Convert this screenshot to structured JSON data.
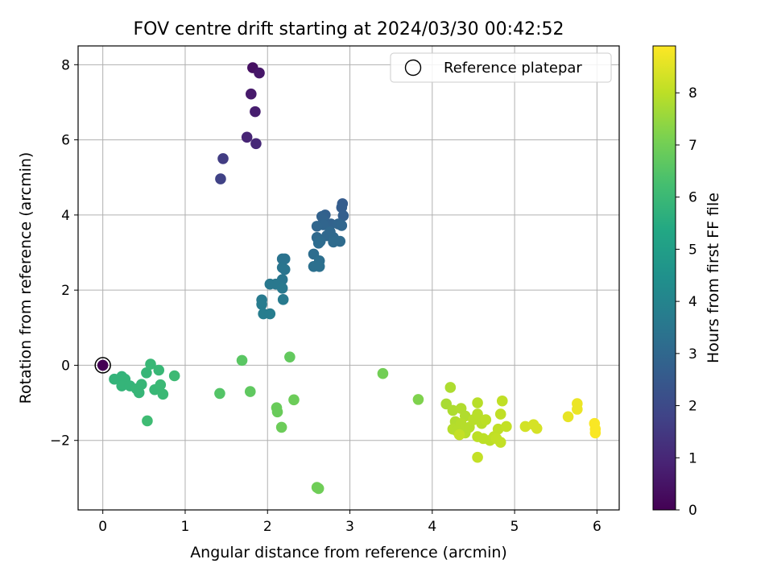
{
  "chart_data": {
    "type": "scatter",
    "title": "FOV centre drift starting at 2024/03/30 00:42:52",
    "xlabel": "Angular distance from reference (arcmin)",
    "ylabel": "Rotation from reference (arcmin)",
    "xlim": [
      -0.3,
      6.27
    ],
    "ylim": [
      -3.85,
      8.5
    ],
    "xticks": [
      0,
      1,
      2,
      3,
      4,
      5,
      6
    ],
    "yticks": [
      -2,
      0,
      2,
      4,
      6,
      8
    ],
    "ytick_labels": [
      "−2",
      "0",
      "2",
      "4",
      "6",
      "8"
    ],
    "grid": true,
    "legend": {
      "position": "top-right",
      "entries": [
        "Reference platepar"
      ]
    },
    "colorbar": {
      "label": "Hours from first FF file",
      "range": [
        0,
        8.9
      ],
      "ticks": [
        0,
        1,
        2,
        3,
        4,
        5,
        6,
        7,
        8
      ],
      "colormap": "viridis"
    },
    "reference_point": {
      "x": 0,
      "y": 0,
      "hour": 0
    },
    "points": [
      [
        1.82,
        7.92,
        0.4
      ],
      [
        1.9,
        7.78,
        0.55
      ],
      [
        1.8,
        7.22,
        0.65
      ],
      [
        1.85,
        6.75,
        0.75
      ],
      [
        1.75,
        6.07,
        0.95
      ],
      [
        1.86,
        5.9,
        1.05
      ],
      [
        1.46,
        5.5,
        1.6
      ],
      [
        1.43,
        4.96,
        1.75
      ],
      [
        2.91,
        4.3,
        2.6
      ],
      [
        2.9,
        4.2,
        2.65
      ],
      [
        2.92,
        3.98,
        2.7
      ],
      [
        2.7,
        4.0,
        2.75
      ],
      [
        2.66,
        3.96,
        2.8
      ],
      [
        2.68,
        3.86,
        2.85
      ],
      [
        2.77,
        3.76,
        2.85
      ],
      [
        2.68,
        3.74,
        2.9
      ],
      [
        2.86,
        3.76,
        2.9
      ],
      [
        2.9,
        3.72,
        2.95
      ],
      [
        2.6,
        3.7,
        2.95
      ],
      [
        2.76,
        3.55,
        3.0
      ],
      [
        2.72,
        3.45,
        3.0
      ],
      [
        2.6,
        3.4,
        3.05
      ],
      [
        2.8,
        3.4,
        3.05
      ],
      [
        2.64,
        3.3,
        3.1
      ],
      [
        2.8,
        3.28,
        3.1
      ],
      [
        2.88,
        3.3,
        3.1
      ],
      [
        2.62,
        3.25,
        3.15
      ],
      [
        2.56,
        2.96,
        3.2
      ],
      [
        2.63,
        2.78,
        3.25
      ],
      [
        2.56,
        2.63,
        3.3
      ],
      [
        2.63,
        2.63,
        3.3
      ],
      [
        2.18,
        2.83,
        3.4
      ],
      [
        2.21,
        2.83,
        3.4
      ],
      [
        2.18,
        2.6,
        3.45
      ],
      [
        2.21,
        2.55,
        3.45
      ],
      [
        2.18,
        2.28,
        3.5
      ],
      [
        2.03,
        2.16,
        3.55
      ],
      [
        2.1,
        2.16,
        3.55
      ],
      [
        2.18,
        2.05,
        3.6
      ],
      [
        1.93,
        1.74,
        3.65
      ],
      [
        2.19,
        1.75,
        3.65
      ],
      [
        1.93,
        1.62,
        3.7
      ],
      [
        1.95,
        1.37,
        3.75
      ],
      [
        2.03,
        1.37,
        3.75
      ],
      [
        0.14,
        -0.37,
        5.8
      ],
      [
        0.23,
        -0.3,
        5.8
      ],
      [
        0.27,
        -0.37,
        5.85
      ],
      [
        0.23,
        -0.55,
        5.85
      ],
      [
        0.33,
        -0.55,
        5.85
      ],
      [
        0.41,
        -0.63,
        5.9
      ],
      [
        0.44,
        -0.73,
        5.9
      ],
      [
        0.47,
        -0.51,
        5.9
      ],
      [
        0.53,
        -0.2,
        5.9
      ],
      [
        0.58,
        0.03,
        5.95
      ],
      [
        0.68,
        -0.13,
        5.95
      ],
      [
        0.63,
        -0.65,
        5.95
      ],
      [
        0.68,
        -0.62,
        5.95
      ],
      [
        0.7,
        -0.52,
        6.0
      ],
      [
        0.73,
        -0.77,
        6.0
      ],
      [
        0.87,
        -0.28,
        6.05
      ],
      [
        0.54,
        -1.48,
        6.1
      ],
      [
        1.42,
        -0.75,
        6.5
      ],
      [
        1.69,
        0.13,
        6.6
      ],
      [
        1.79,
        -0.7,
        6.7
      ],
      [
        2.27,
        0.22,
        6.75
      ],
      [
        2.11,
        -1.13,
        6.85
      ],
      [
        2.12,
        -1.24,
        6.85
      ],
      [
        2.17,
        -1.65,
        6.9
      ],
      [
        2.32,
        -0.92,
        6.9
      ],
      [
        2.6,
        -3.25,
        6.95
      ],
      [
        2.62,
        -3.28,
        6.95
      ],
      [
        3.4,
        -0.22,
        7.0
      ],
      [
        3.83,
        -0.91,
        7.2
      ],
      [
        4.17,
        -1.03,
        7.75
      ],
      [
        4.22,
        -0.59,
        7.8
      ],
      [
        4.25,
        -1.2,
        7.8
      ],
      [
        4.35,
        -1.15,
        7.85
      ],
      [
        4.4,
        -1.35,
        7.85
      ],
      [
        4.28,
        -1.5,
        7.85
      ],
      [
        4.35,
        -1.55,
        7.9
      ],
      [
        4.25,
        -1.7,
        7.9
      ],
      [
        4.3,
        -1.75,
        7.9
      ],
      [
        4.4,
        -1.8,
        7.9
      ],
      [
        4.45,
        -1.65,
        7.9
      ],
      [
        4.5,
        -1.45,
        7.95
      ],
      [
        4.55,
        -1.0,
        7.95
      ],
      [
        4.55,
        -1.3,
        7.95
      ],
      [
        4.6,
        -1.55,
        7.95
      ],
      [
        4.65,
        -1.45,
        8.0
      ],
      [
        4.55,
        -1.9,
        8.0
      ],
      [
        4.62,
        -1.95,
        8.0
      ],
      [
        4.7,
        -2.0,
        8.0
      ],
      [
        4.75,
        -1.9,
        8.05
      ],
      [
        4.8,
        -1.7,
        8.05
      ],
      [
        4.83,
        -1.3,
        8.05
      ],
      [
        4.85,
        -0.95,
        8.05
      ],
      [
        4.9,
        -1.63,
        8.1
      ],
      [
        4.78,
        -1.95,
        8.1
      ],
      [
        4.83,
        -2.05,
        8.1
      ],
      [
        4.55,
        -2.45,
        8.1
      ],
      [
        4.33,
        -1.85,
        8.1
      ],
      [
        5.13,
        -1.63,
        8.3
      ],
      [
        5.23,
        -1.58,
        8.35
      ],
      [
        5.27,
        -1.68,
        8.35
      ],
      [
        5.65,
        -1.37,
        8.6
      ],
      [
        5.76,
        -1.02,
        8.65
      ],
      [
        5.76,
        -1.17,
        8.65
      ],
      [
        5.97,
        -1.55,
        8.85
      ],
      [
        5.98,
        -1.7,
        8.85
      ],
      [
        5.98,
        -1.8,
        8.85
      ]
    ]
  }
}
